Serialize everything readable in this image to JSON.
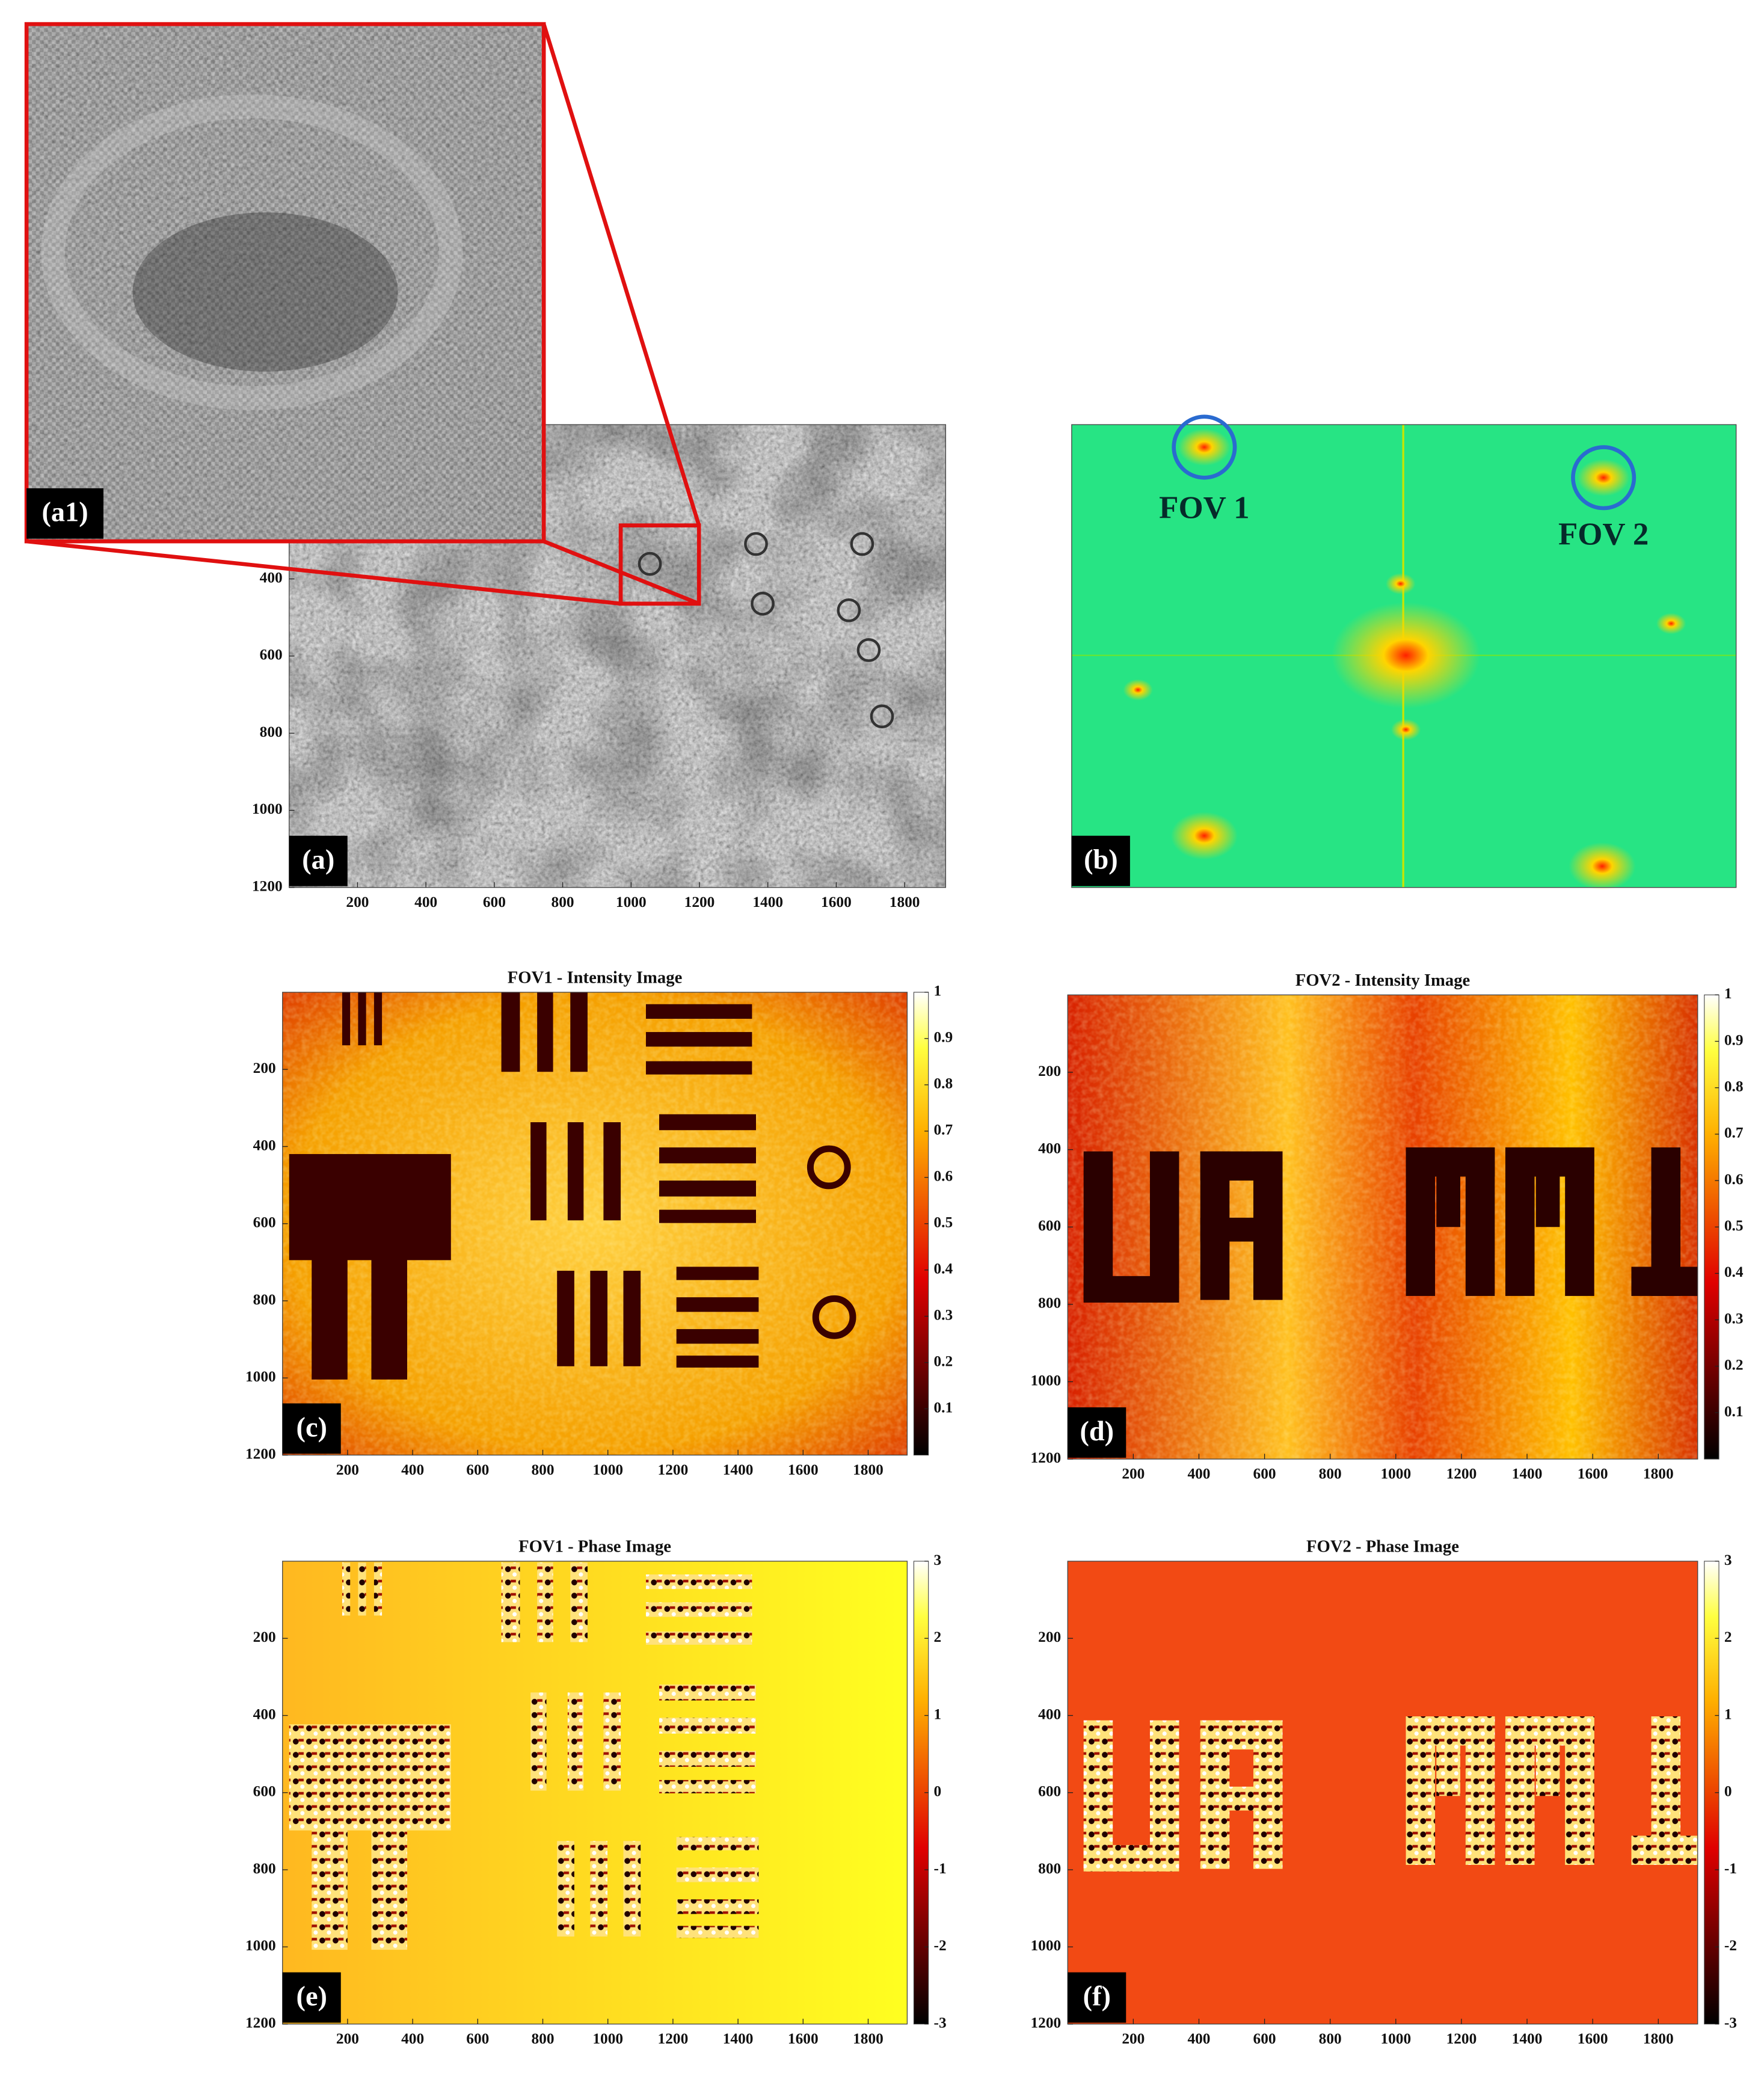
{
  "chart_data": [
    {
      "type": "image",
      "style": "hologram",
      "label": "(a)",
      "inset_label": "(a1)",
      "xlim": [
        0,
        1920
      ],
      "ylim": [
        0,
        1200
      ],
      "xticks": [
        200,
        400,
        600,
        800,
        1000,
        1200,
        1400,
        1600,
        1800
      ],
      "yticks": [
        400,
        600,
        800,
        1000,
        1200
      ]
    },
    {
      "type": "image",
      "style": "spectrum",
      "label": "(b)",
      "annotations": [
        "FOV 1",
        "FOV 2"
      ]
    },
    {
      "type": "image",
      "style": "intensity1",
      "title": "FOV1 - Intensity Image",
      "label": "(c)",
      "xlim": [
        0,
        1920
      ],
      "ylim": [
        0,
        1200
      ],
      "xticks": [
        200,
        400,
        600,
        800,
        1000,
        1200,
        1400,
        1600,
        1800
      ],
      "yticks": [
        200,
        400,
        600,
        800,
        1000,
        1200
      ],
      "colormap": "hot",
      "clim": [
        0,
        1
      ],
      "cticks": [
        0.1,
        0.2,
        0.3,
        0.4,
        0.5,
        0.6,
        0.7,
        0.8,
        0.9,
        1
      ]
    },
    {
      "type": "image",
      "style": "intensity2",
      "title": "FOV2 - Intensity Image",
      "label": "(d)",
      "xlim": [
        0,
        1920
      ],
      "ylim": [
        0,
        1200
      ],
      "xticks": [
        200,
        400,
        600,
        800,
        1000,
        1200,
        1400,
        1600,
        1800
      ],
      "yticks": [
        200,
        400,
        600,
        800,
        1000,
        1200
      ],
      "colormap": "hot",
      "clim": [
        0,
        1
      ],
      "cticks": [
        0.1,
        0.2,
        0.3,
        0.4,
        0.5,
        0.6,
        0.7,
        0.8,
        0.9,
        1
      ]
    },
    {
      "type": "image",
      "style": "phase1",
      "title": "FOV1 - Phase Image",
      "label": "(e)",
      "xlim": [
        0,
        1920
      ],
      "ylim": [
        0,
        1200
      ],
      "xticks": [
        200,
        400,
        600,
        800,
        1000,
        1200,
        1400,
        1600,
        1800
      ],
      "yticks": [
        200,
        400,
        600,
        800,
        1000,
        1200
      ],
      "colormap": "hot",
      "clim": [
        -3,
        3
      ],
      "cticks": [
        -3,
        -2,
        -1,
        0,
        1,
        2,
        3
      ]
    },
    {
      "type": "image",
      "style": "phase2",
      "title": "FOV2 - Phase Image",
      "label": "(f)",
      "xlim": [
        0,
        1920
      ],
      "ylim": [
        0,
        1200
      ],
      "xticks": [
        200,
        400,
        600,
        800,
        1000,
        1200,
        1400,
        1600,
        1800
      ],
      "yticks": [
        200,
        400,
        600,
        800,
        1000,
        1200
      ],
      "colormap": "hot",
      "clim": [
        -3,
        3
      ],
      "cticks": [
        -3,
        -2,
        -1,
        0,
        1,
        2,
        3
      ]
    }
  ]
}
